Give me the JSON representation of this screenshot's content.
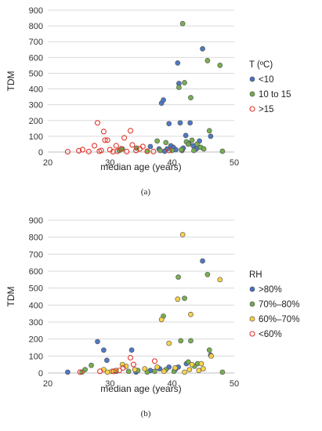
{
  "chart_data": [
    {
      "type": "scatter",
      "panel_label": "(a)",
      "xlabel": "median age (years)",
      "ylabel": "TDM",
      "xlim": [
        20,
        50
      ],
      "ylim": [
        0,
        900
      ],
      "xticks": [
        20,
        30,
        40,
        50
      ],
      "yticks": [
        0,
        100,
        200,
        300,
        400,
        500,
        600,
        700,
        800,
        900
      ],
      "grid": "horizontal",
      "legend_title": "T (ºC)",
      "legend_position": "right",
      "series": [
        {
          "name": "<10",
          "color": "#4472c4",
          "filled": true,
          "points": [
            [
              38.3,
              310
            ],
            [
              38.6,
              330
            ],
            [
              39.5,
              180
            ],
            [
              39.2,
              20
            ],
            [
              39.8,
              40
            ],
            [
              40.2,
              30
            ],
            [
              40.6,
              15
            ],
            [
              40.9,
              565
            ],
            [
              41.1,
              435
            ],
            [
              41.3,
              185
            ],
            [
              41.6,
              10
            ],
            [
              42.2,
              105
            ],
            [
              42.7,
              55
            ],
            [
              42.9,
              185
            ],
            [
              43.4,
              40
            ],
            [
              43.9,
              20
            ],
            [
              44.4,
              70
            ],
            [
              44.9,
              655
            ],
            [
              46.2,
              100
            ],
            [
              41.8,
              25
            ],
            [
              37.9,
              20
            ],
            [
              36.5,
              35
            ],
            [
              38.8,
              5
            ]
          ]
        },
        {
          "name": "10 to 15",
          "color": "#70ad47",
          "filled": true,
          "points": [
            [
              41.7,
              815
            ],
            [
              42.0,
              440
            ],
            [
              45.7,
              580
            ],
            [
              47.7,
              550
            ],
            [
              41.1,
              410
            ],
            [
              43.0,
              345
            ],
            [
              46.0,
              135
            ],
            [
              42.3,
              65
            ],
            [
              43.2,
              75
            ],
            [
              42.6,
              50
            ],
            [
              44.0,
              50
            ],
            [
              44.6,
              30
            ],
            [
              45.1,
              20
            ],
            [
              43.5,
              10
            ],
            [
              41.5,
              15
            ],
            [
              40.0,
              10
            ],
            [
              38.1,
              10
            ],
            [
              37.6,
              70
            ],
            [
              34.3,
              25
            ],
            [
              32.0,
              20
            ],
            [
              31.5,
              10
            ],
            [
              48.1,
              5
            ],
            [
              36.0,
              5
            ],
            [
              39.0,
              60
            ]
          ]
        },
        {
          "name": ">15",
          "color": "#e0342a",
          "filled": false,
          "points": [
            [
              23.2,
              2
            ],
            [
              25.0,
              8
            ],
            [
              25.6,
              15
            ],
            [
              26.6,
              3
            ],
            [
              27.5,
              40
            ],
            [
              28.0,
              185
            ],
            [
              28.6,
              10
            ],
            [
              29.0,
              130
            ],
            [
              29.2,
              75
            ],
            [
              29.6,
              75
            ],
            [
              30.0,
              15
            ],
            [
              30.5,
              2
            ],
            [
              31.0,
              40
            ],
            [
              31.8,
              20
            ],
            [
              32.3,
              90
            ],
            [
              32.7,
              3
            ],
            [
              33.3,
              135
            ],
            [
              33.6,
              45
            ],
            [
              34.2,
              10
            ],
            [
              34.8,
              20
            ],
            [
              35.3,
              35
            ],
            [
              36.0,
              5
            ],
            [
              37.0,
              3
            ],
            [
              39.5,
              10
            ],
            [
              28.3,
              5
            ],
            [
              31.2,
              5
            ]
          ]
        }
      ]
    },
    {
      "type": "scatter",
      "panel_label": "(b)",
      "xlabel": "median age (years)",
      "ylabel": "TDM",
      "xlim": [
        20,
        50
      ],
      "ylim": [
        0,
        900
      ],
      "xticks": [
        20,
        30,
        40,
        50
      ],
      "yticks": [
        0,
        100,
        200,
        300,
        400,
        500,
        600,
        700,
        800,
        900
      ],
      "grid": "horizontal",
      "legend_title": "RH",
      "legend_position": "right",
      "series": [
        {
          "name": ">80%",
          "color": "#4472c4",
          "filled": true,
          "points": [
            [
              23.2,
              5
            ],
            [
              28.0,
              185
            ],
            [
              29.0,
              135
            ],
            [
              29.5,
              75
            ],
            [
              33.5,
              135
            ],
            [
              34.2,
              5
            ],
            [
              39.5,
              35
            ],
            [
              40.5,
              20
            ],
            [
              41.0,
              35
            ],
            [
              42.3,
              55
            ],
            [
              44.9,
              660
            ],
            [
              46.2,
              105
            ],
            [
              38.0,
              25
            ],
            [
              36.5,
              15
            ],
            [
              31.0,
              10
            ]
          ]
        },
        {
          "name": "70%–80%",
          "color": "#70ad47",
          "filled": true,
          "points": [
            [
              27.0,
              45
            ],
            [
              26.0,
              20
            ],
            [
              25.5,
              5
            ],
            [
              41.0,
              565
            ],
            [
              42.0,
              440
            ],
            [
              45.7,
              580
            ],
            [
              38.6,
              335
            ],
            [
              46.0,
              135
            ],
            [
              43.0,
              190
            ],
            [
              41.4,
              190
            ],
            [
              42.6,
              65
            ],
            [
              43.6,
              40
            ],
            [
              44.1,
              55
            ],
            [
              40.3,
              10
            ],
            [
              39.0,
              20
            ],
            [
              36.0,
              5
            ],
            [
              34.5,
              15
            ],
            [
              33.0,
              10
            ],
            [
              48.1,
              5
            ],
            [
              37.2,
              10
            ]
          ]
        },
        {
          "name": "60%–70%",
          "color": "#ffd23f",
          "filled": true,
          "points": [
            [
              41.7,
              815
            ],
            [
              47.7,
              550
            ],
            [
              40.9,
              435
            ],
            [
              38.3,
              315
            ],
            [
              43.0,
              345
            ],
            [
              39.5,
              175
            ],
            [
              46.3,
              100
            ],
            [
              45.0,
              25
            ],
            [
              44.3,
              15
            ],
            [
              43.2,
              50
            ],
            [
              42.8,
              20
            ],
            [
              42.0,
              5
            ],
            [
              40.5,
              30
            ],
            [
              38.7,
              10
            ],
            [
              37.6,
              35
            ],
            [
              35.6,
              25
            ],
            [
              34.0,
              20
            ],
            [
              32.6,
              40
            ],
            [
              32.0,
              50
            ],
            [
              31.0,
              15
            ],
            [
              30.3,
              10
            ],
            [
              29.6,
              5
            ],
            [
              29.0,
              20
            ],
            [
              44.7,
              55
            ]
          ]
        },
        {
          "name": "<60%",
          "color": "#e0342a",
          "filled": false,
          "points": [
            [
              30.6,
              10
            ],
            [
              31.5,
              15
            ],
            [
              32.1,
              30
            ],
            [
              33.3,
              90
            ],
            [
              33.8,
              50
            ],
            [
              37.2,
              70
            ],
            [
              25.2,
              5
            ],
            [
              28.4,
              10
            ]
          ]
        }
      ]
    }
  ]
}
